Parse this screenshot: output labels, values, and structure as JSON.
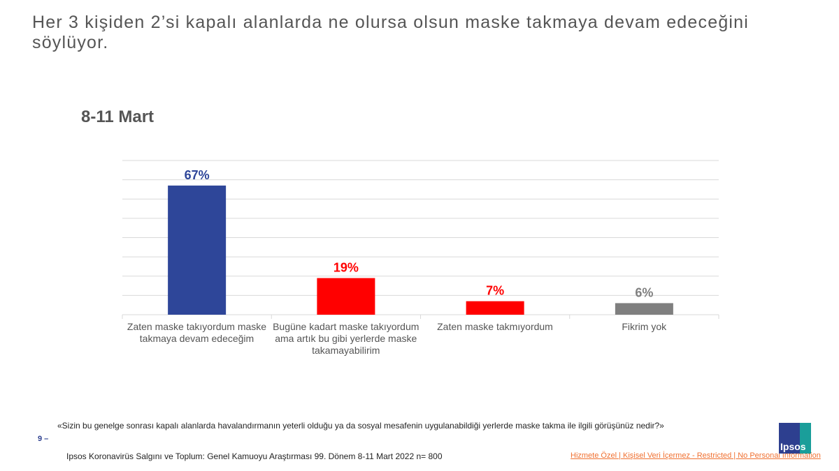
{
  "title": "Her 3 kişiden 2’si kapalı alanlarda ne olursa olsun maske takmaya devam edeceğini söylüyor.",
  "chart_data": {
    "type": "bar",
    "subtitle": "8-11 Mart",
    "categories": [
      "Zaten maske takıyordum maske takmaya devam edeceğim",
      "Bugüne kadart maske takıyordum ama artık bu gibi yerlerde maske takamayabilirim",
      "Zaten maske takmıyordum",
      "Fikrim yok"
    ],
    "values": [
      67,
      19,
      7,
      6
    ],
    "data_labels": [
      "67%",
      "19%",
      "7%",
      "6%"
    ],
    "colors": [
      "#2e4699",
      "#ff0000",
      "#ff0000",
      "#7f7f7f"
    ],
    "label_colors": [
      "#2e4699",
      "#ff0000",
      "#ff0000",
      "#7f7f7f"
    ],
    "ylim": [
      0,
      80
    ],
    "grid": true,
    "unit": "%"
  },
  "footer": {
    "question": "«Sizin bu genelge sonrası kapalı alanlarda havalandırmanın yeterli olduğu ya da sosyal mesafenin uygulanabildiği yerlerde maske takma ile ilgili görüşünüz nedir?»",
    "page_number": "9 –",
    "source": "Ipsos Koronavirüs Salgını ve Toplum: Genel Kamuoyu Araştırması 99. Dönem 8-11 Mart 2022 n= 800",
    "classification": "Hizmete Özel | Kişisel Veri İçermez - Restricted | No Personal Information",
    "logo": "Ipsos"
  }
}
